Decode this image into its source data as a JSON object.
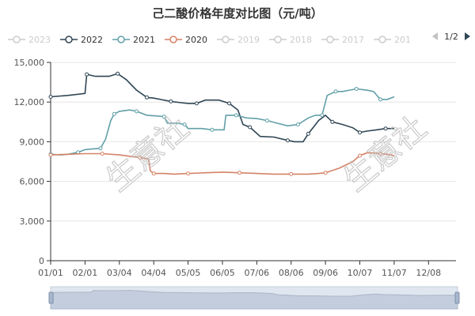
{
  "chart_data": {
    "type": "line",
    "title": "己二酸价格年度对比图（元/吨）",
    "legend": {
      "items": [
        {
          "label": "2023",
          "color": "#cccccc",
          "active": false
        },
        {
          "label": "2022",
          "color": "#2f4554",
          "active": true
        },
        {
          "label": "2021",
          "color": "#61a0a8",
          "active": true
        },
        {
          "label": "2020",
          "color": "#d48265",
          "active": true
        },
        {
          "label": "2019",
          "color": "#cccccc",
          "active": false
        },
        {
          "label": "2018",
          "color": "#cccccc",
          "active": false
        },
        {
          "label": "2017",
          "color": "#cccccc",
          "active": false
        },
        {
          "label": "201",
          "color": "#cccccc",
          "active": false
        }
      ],
      "page": "1/2",
      "placement": "top"
    },
    "xlabels": [
      "01/01",
      "02/01",
      "03/04",
      "04/04",
      "05/05",
      "06/05",
      "07/06",
      "08/06",
      "09/06",
      "10/07",
      "11/07",
      "12/08"
    ],
    "ylim": [
      0,
      15000
    ],
    "yticks": [
      "0",
      "3,000",
      "6,000",
      "9,000",
      "12,000",
      "15,000"
    ],
    "grid": true,
    "watermark": "生意社",
    "series": [
      {
        "name": "2022",
        "color": "#2f4554",
        "values": [
          [
            0,
            12400
          ],
          [
            0.5,
            12500
          ],
          [
            1.0,
            12650
          ],
          [
            1.05,
            14100
          ],
          [
            1.3,
            13950
          ],
          [
            1.7,
            13950
          ],
          [
            1.95,
            14150
          ],
          [
            2.2,
            13700
          ],
          [
            2.5,
            12900
          ],
          [
            2.8,
            12350
          ],
          [
            3.0,
            12300
          ],
          [
            3.2,
            12200
          ],
          [
            3.5,
            12050
          ],
          [
            3.8,
            11950
          ],
          [
            4.0,
            11900
          ],
          [
            4.25,
            11900
          ],
          [
            4.5,
            12150
          ],
          [
            4.9,
            12150
          ],
          [
            5.2,
            11900
          ],
          [
            5.45,
            11400
          ],
          [
            5.6,
            10300
          ],
          [
            5.8,
            10100
          ],
          [
            6.1,
            9400
          ],
          [
            6.5,
            9350
          ],
          [
            6.9,
            9100
          ],
          [
            7.1,
            9000
          ],
          [
            7.35,
            9000
          ],
          [
            7.5,
            9600
          ],
          [
            7.8,
            10600
          ],
          [
            8.0,
            11000
          ],
          [
            8.2,
            10500
          ],
          [
            8.5,
            10300
          ],
          [
            8.8,
            10050
          ],
          [
            9.0,
            9700
          ],
          [
            9.2,
            9800
          ],
          [
            9.5,
            9900
          ],
          [
            9.75,
            10000
          ],
          [
            10.0,
            10000
          ]
        ]
      },
      {
        "name": "2021",
        "color": "#61a0a8",
        "values": [
          [
            0,
            8050
          ],
          [
            0.3,
            8000
          ],
          [
            0.5,
            8050
          ],
          [
            0.8,
            8200
          ],
          [
            1.0,
            8400
          ],
          [
            1.2,
            8450
          ],
          [
            1.45,
            8500
          ],
          [
            1.6,
            9200
          ],
          [
            1.75,
            10600
          ],
          [
            1.85,
            11100
          ],
          [
            2.0,
            11300
          ],
          [
            2.3,
            11400
          ],
          [
            2.5,
            11300
          ],
          [
            2.8,
            11000
          ],
          [
            3.1,
            10950
          ],
          [
            3.3,
            10900
          ],
          [
            3.4,
            10400
          ],
          [
            3.7,
            10400
          ],
          [
            3.9,
            10300
          ],
          [
            4.0,
            10000
          ],
          [
            4.4,
            10000
          ],
          [
            4.7,
            9900
          ],
          [
            5.05,
            9900
          ],
          [
            5.1,
            11000
          ],
          [
            5.4,
            11000
          ],
          [
            5.7,
            10800
          ],
          [
            6.0,
            10750
          ],
          [
            6.3,
            10600
          ],
          [
            6.6,
            10400
          ],
          [
            6.9,
            10200
          ],
          [
            7.2,
            10300
          ],
          [
            7.5,
            10800
          ],
          [
            7.7,
            11000
          ],
          [
            7.9,
            11000
          ],
          [
            8.0,
            12000
          ],
          [
            8.05,
            12500
          ],
          [
            8.3,
            12800
          ],
          [
            8.5,
            12800
          ],
          [
            8.7,
            12900
          ],
          [
            8.9,
            13000
          ],
          [
            9.2,
            12900
          ],
          [
            9.4,
            12800
          ],
          [
            9.6,
            12200
          ],
          [
            9.8,
            12200
          ],
          [
            10.0,
            12400
          ]
        ]
      },
      {
        "name": "2020",
        "color": "#d48265",
        "values": [
          [
            0,
            8000
          ],
          [
            0.5,
            8050
          ],
          [
            1.0,
            8100
          ],
          [
            1.5,
            8100
          ],
          [
            2.0,
            8000
          ],
          [
            2.3,
            7900
          ],
          [
            2.6,
            7800
          ],
          [
            2.85,
            7700
          ],
          [
            2.9,
            6800
          ],
          [
            3.0,
            6600
          ],
          [
            3.3,
            6600
          ],
          [
            3.6,
            6550
          ],
          [
            4.0,
            6600
          ],
          [
            4.5,
            6650
          ],
          [
            5.0,
            6700
          ],
          [
            5.5,
            6650
          ],
          [
            6.0,
            6600
          ],
          [
            6.5,
            6550
          ],
          [
            7.0,
            6550
          ],
          [
            7.5,
            6550
          ],
          [
            7.8,
            6600
          ],
          [
            8.0,
            6650
          ],
          [
            8.4,
            7000
          ],
          [
            8.8,
            7500
          ],
          [
            9.0,
            7950
          ],
          [
            9.2,
            8150
          ],
          [
            9.4,
            8150
          ],
          [
            9.6,
            8100
          ],
          [
            9.8,
            8050
          ],
          [
            10.0,
            7950
          ]
        ]
      }
    ]
  },
  "data_zoom": {
    "label_start": "",
    "label_end": ""
  }
}
